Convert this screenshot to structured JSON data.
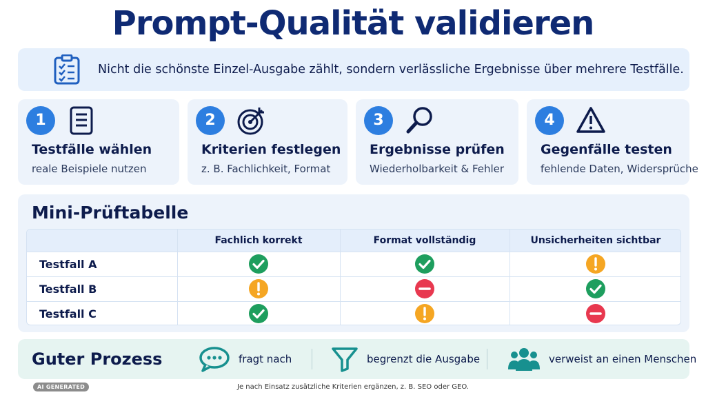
{
  "title": "Prompt-Qualität validieren",
  "banner": {
    "icon": "clipboard-checklist-icon",
    "text": "Nicht die schönste Einzel-Ausgabe zählt, sondern verlässliche Ergebnisse über mehrere Testfälle."
  },
  "steps": [
    {
      "number": "1",
      "icon": "document-icon",
      "title": "Testfälle wählen",
      "subtitle": "reale Beispiele nutzen"
    },
    {
      "number": "2",
      "icon": "target-icon",
      "title": "Kriterien festlegen",
      "subtitle": "z. B. Fachlichkeit, Format"
    },
    {
      "number": "3",
      "icon": "magnifier-icon",
      "title": "Ergebnisse prüfen",
      "subtitle": "Wiederholbarkeit & Fehler"
    },
    {
      "number": "4",
      "icon": "warning-icon",
      "title": "Gegenfälle testen",
      "subtitle": "fehlende Daten, Widersprüche"
    }
  ],
  "table": {
    "title": "Mini-Prüftabelle",
    "columns": [
      "Fachlich korrekt",
      "Format vollständig",
      "Unsicherheiten sichtbar"
    ],
    "rows": [
      {
        "label": "Testfall A",
        "status": [
          "check",
          "check",
          "warning"
        ]
      },
      {
        "label": "Testfall B",
        "status": [
          "warning",
          "error",
          "check"
        ]
      },
      {
        "label": "Testfall C",
        "status": [
          "check",
          "warning",
          "error"
        ]
      }
    ],
    "status_colors": {
      "check": "#1e9e5e",
      "warning": "#f5a623",
      "error": "#e8384f"
    }
  },
  "process": {
    "title": "Guter Prozess",
    "items": [
      {
        "icon": "chat-bubble-icon",
        "label": "fragt nach"
      },
      {
        "icon": "filter-icon",
        "label": "begrenzt die Ausgabe"
      },
      {
        "icon": "people-icon",
        "label": "verweist an einen Menschen"
      }
    ]
  },
  "badge": "AI GENERATED",
  "footnote": "Je nach Einsatz zusätzliche Kriterien ergänzen, z. B. SEO oder GEO."
}
